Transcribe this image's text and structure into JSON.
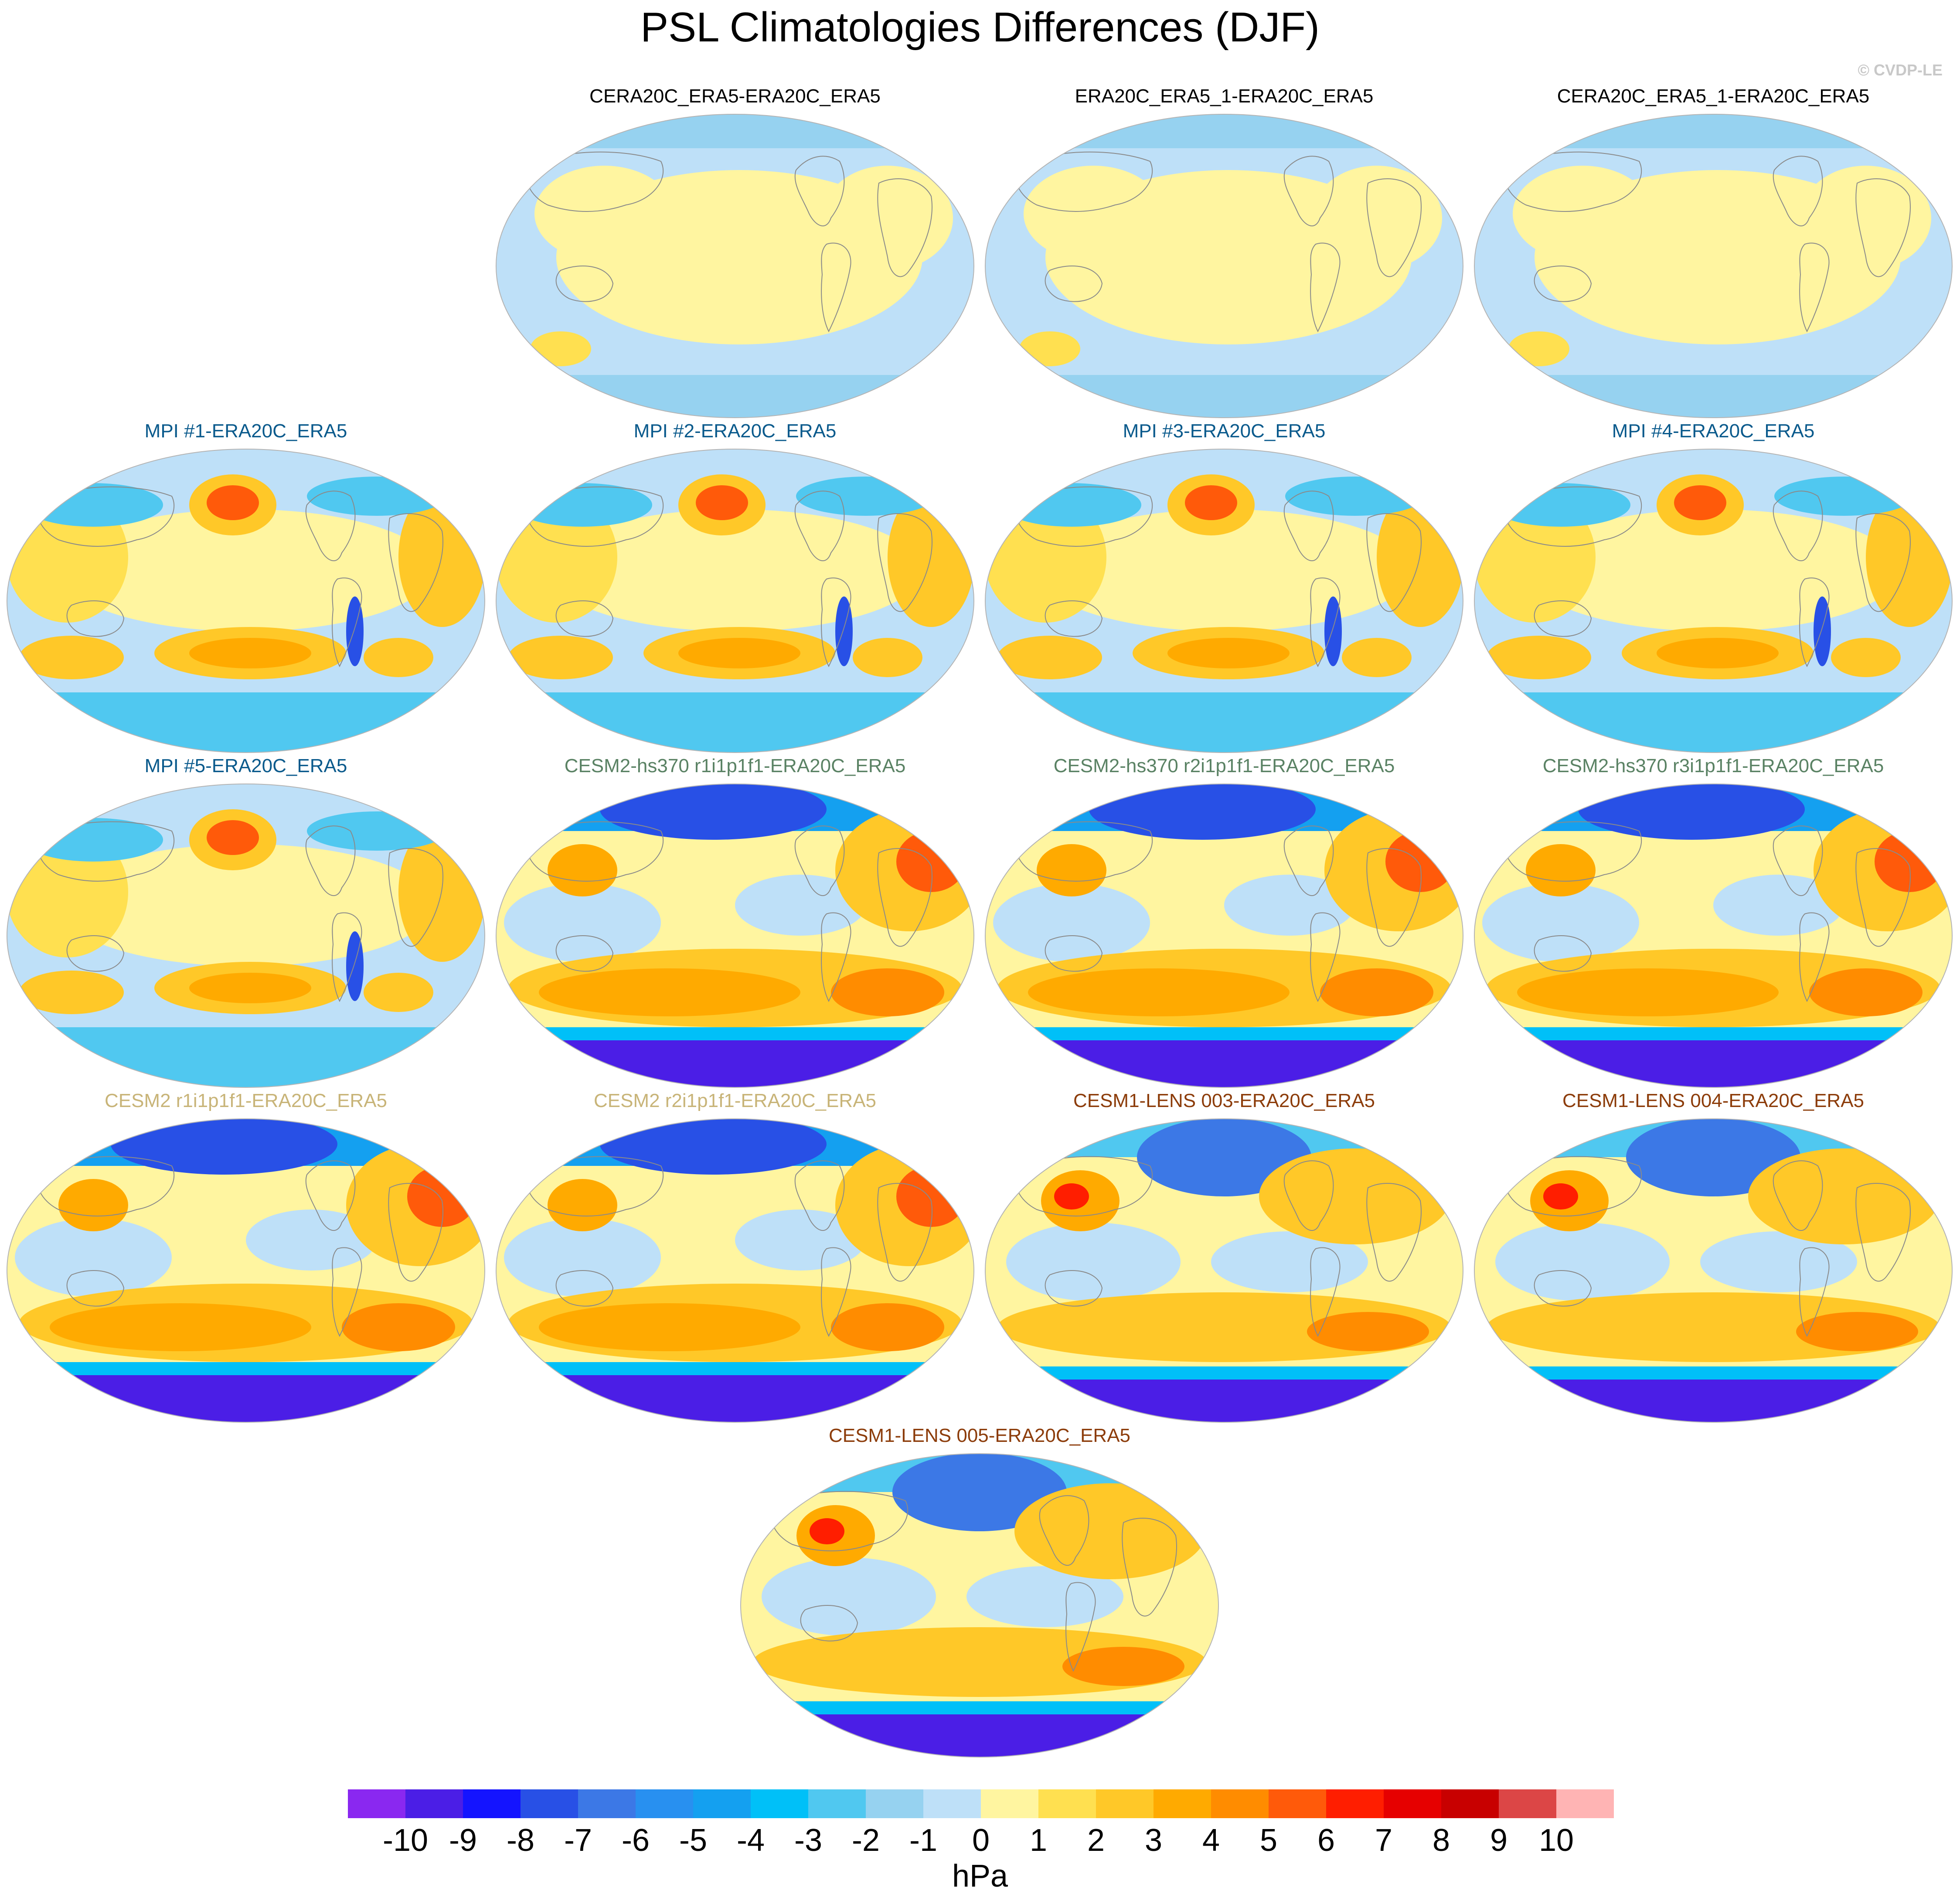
{
  "title": "PSL Climatologies Differences (DJF)",
  "credit": "© CVDP-LE",
  "units": "hPa",
  "colorbar": {
    "labels": [
      "-10",
      "-9",
      "-8",
      "-7",
      "-6",
      "-5",
      "-4",
      "-3",
      "-2",
      "-1",
      "0",
      "1",
      "2",
      "3",
      "4",
      "5",
      "6",
      "7",
      "8",
      "9",
      "10"
    ],
    "colors": [
      "#8a28f0",
      "#4b1ee6",
      "#1414ff",
      "#2850e6",
      "#3c78e6",
      "#2890f0",
      "#14a0f0",
      "#00c0f8",
      "#50c8f0",
      "#96d2f0",
      "#bee0f8",
      "#fff5a0",
      "#ffe050",
      "#ffc828",
      "#ffaa00",
      "#ff8c00",
      "#ff5a0a",
      "#ff1e00",
      "#e60000",
      "#c80000",
      "#dc4646",
      "#ffb4b4"
    ]
  },
  "panels": [
    {
      "id": "cera20c-era5",
      "title": "CERA20C_ERA5-ERA20C_ERA5",
      "title_color": "#000000",
      "pattern": "reanalysis"
    },
    {
      "id": "era20c-era5-1",
      "title": "ERA20C_ERA5_1-ERA20C_ERA5",
      "title_color": "#000000",
      "pattern": "reanalysis"
    },
    {
      "id": "cera20c-era5-1",
      "title": "CERA20C_ERA5_1-ERA20C_ERA5",
      "title_color": "#000000",
      "pattern": "reanalysis"
    },
    {
      "id": "mpi-1",
      "title": "MPI #1-ERA20C_ERA5",
      "title_color": "#0a5a8c",
      "pattern": "mpi"
    },
    {
      "id": "mpi-2",
      "title": "MPI #2-ERA20C_ERA5",
      "title_color": "#0a5a8c",
      "pattern": "mpi"
    },
    {
      "id": "mpi-3",
      "title": "MPI #3-ERA20C_ERA5",
      "title_color": "#0a5a8c",
      "pattern": "mpi"
    },
    {
      "id": "mpi-4",
      "title": "MPI #4-ERA20C_ERA5",
      "title_color": "#0a5a8c",
      "pattern": "mpi"
    },
    {
      "id": "mpi-5",
      "title": "MPI #5-ERA20C_ERA5",
      "title_color": "#0a5a8c",
      "pattern": "mpi"
    },
    {
      "id": "cesm2-hs370-r1",
      "title": "CESM2-hs370 r1i1p1f1-ERA20C_ERA5",
      "title_color": "#5a8264",
      "pattern": "cesm2"
    },
    {
      "id": "cesm2-hs370-r2",
      "title": "CESM2-hs370 r2i1p1f1-ERA20C_ERA5",
      "title_color": "#5a8264",
      "pattern": "cesm2"
    },
    {
      "id": "cesm2-hs370-r3",
      "title": "CESM2-hs370 r3i1p1f1-ERA20C_ERA5",
      "title_color": "#5a8264",
      "pattern": "cesm2"
    },
    {
      "id": "cesm2-r1",
      "title": "CESM2 r1i1p1f1-ERA20C_ERA5",
      "title_color": "#c8b478",
      "pattern": "cesm2"
    },
    {
      "id": "cesm2-r2",
      "title": "CESM2 r2i1p1f1-ERA20C_ERA5",
      "title_color": "#c8b478",
      "pattern": "cesm2"
    },
    {
      "id": "cesm1-lens-003",
      "title": "CESM1-LENS 003-ERA20C_ERA5",
      "title_color": "#8c3c0a",
      "pattern": "cesm1"
    },
    {
      "id": "cesm1-lens-004",
      "title": "CESM1-LENS 004-ERA20C_ERA5",
      "title_color": "#8c3c0a",
      "pattern": "cesm1"
    },
    {
      "id": "cesm1-lens-005",
      "title": "CESM1-LENS 005-ERA20C_ERA5",
      "title_color": "#8c3c0a",
      "pattern": "cesm1"
    }
  ]
}
